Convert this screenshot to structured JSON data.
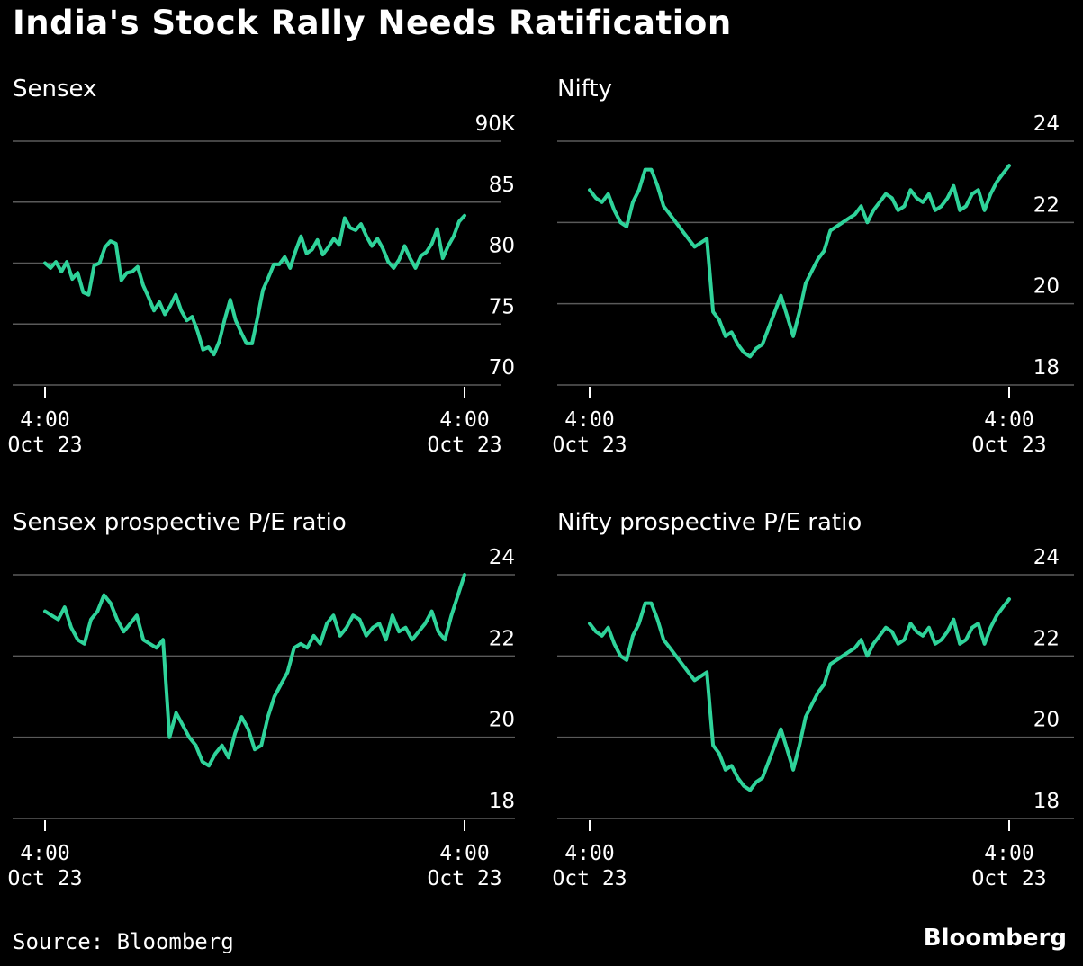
{
  "title": "India's Stock Rally Needs Ratification",
  "source": "Source: Bloomberg",
  "brand": "Bloomberg",
  "colors": {
    "line": "#2fd39a",
    "background": "#000000",
    "grid": "#5a5a5a",
    "text": "#ffffff"
  },
  "chart_data": [
    {
      "type": "line",
      "title": "Sensex",
      "xlabel": "",
      "ylabel": "",
      "ylim": [
        70,
        90
      ],
      "yticks": [
        70,
        75,
        80,
        85,
        90
      ],
      "ytick_labels": [
        "70",
        "75",
        "80",
        "85",
        "90K"
      ],
      "xtick_labels": [
        [
          "4:00",
          "Oct 23"
        ],
        [
          "4:00",
          "Oct 23"
        ]
      ],
      "series": [
        {
          "name": "Sensex",
          "values": [
            80.0,
            79.6,
            80.1,
            79.3,
            80.1,
            78.7,
            79.2,
            77.6,
            77.4,
            79.8,
            80.0,
            81.3,
            81.8,
            81.6,
            78.6,
            79.2,
            79.3,
            79.7,
            78.2,
            77.2,
            76.1,
            76.8,
            75.8,
            76.5,
            77.4,
            76.1,
            75.3,
            75.6,
            74.4,
            72.9,
            73.1,
            72.5,
            73.6,
            75.4,
            77.0,
            75.3,
            74.3,
            73.4,
            73.4,
            75.5,
            77.8,
            78.8,
            79.9,
            79.9,
            80.5,
            79.6,
            81.0,
            82.2,
            80.8,
            81.1,
            81.9,
            80.7,
            81.3,
            82.0,
            81.5,
            83.7,
            82.9,
            82.7,
            83.2,
            82.2,
            81.4,
            82.0,
            81.2,
            80.1,
            79.6,
            80.3,
            81.4,
            80.4,
            79.6,
            80.6,
            80.9,
            81.6,
            82.8,
            80.4,
            81.4,
            82.2,
            83.4,
            83.9
          ]
        }
      ]
    },
    {
      "type": "line",
      "title": "Nifty",
      "xlabel": "",
      "ylabel": "",
      "ylim": [
        18,
        24
      ],
      "yticks": [
        18,
        20,
        22,
        24
      ],
      "ytick_labels": [
        "18",
        "20",
        "22",
        "24"
      ],
      "xtick_labels": [
        [
          "4:00",
          "Oct 23"
        ],
        [
          "4:00",
          "Oct 23"
        ]
      ],
      "series": [
        {
          "name": "Nifty",
          "values": [
            22.8,
            22.6,
            22.5,
            22.7,
            22.3,
            22.0,
            21.9,
            22.5,
            22.8,
            23.3,
            23.3,
            22.9,
            22.4,
            22.2,
            22.0,
            21.8,
            21.6,
            21.4,
            21.5,
            21.6,
            19.8,
            19.6,
            19.2,
            19.3,
            19.0,
            18.8,
            18.7,
            18.9,
            19.0,
            19.4,
            19.8,
            20.2,
            19.7,
            19.2,
            19.8,
            20.5,
            20.8,
            21.1,
            21.3,
            21.8,
            21.9,
            22.0,
            22.1,
            22.2,
            22.4,
            22.0,
            22.3,
            22.5,
            22.7,
            22.6,
            22.3,
            22.4,
            22.8,
            22.6,
            22.5,
            22.7,
            22.3,
            22.4,
            22.6,
            22.9,
            22.3,
            22.4,
            22.7,
            22.8,
            22.3,
            22.7,
            23.0,
            23.2,
            23.4
          ]
        }
      ]
    },
    {
      "type": "line",
      "title": "Sensex prospective P/E ratio",
      "xlabel": "",
      "ylabel": "",
      "ylim": [
        18,
        24
      ],
      "yticks": [
        18,
        20,
        22,
        24
      ],
      "ytick_labels": [
        "18",
        "20",
        "22",
        "24"
      ],
      "xtick_labels": [
        [
          "4:00",
          "Oct 23"
        ],
        [
          "4:00",
          "Oct 23"
        ]
      ],
      "series": [
        {
          "name": "Sensex P/E",
          "values": [
            23.1,
            23.0,
            22.9,
            23.2,
            22.7,
            22.4,
            22.3,
            22.9,
            23.1,
            23.5,
            23.3,
            22.9,
            22.6,
            22.8,
            23.0,
            22.4,
            22.3,
            22.2,
            22.4,
            20.0,
            20.6,
            20.3,
            20.0,
            19.8,
            19.4,
            19.3,
            19.6,
            19.8,
            19.5,
            20.1,
            20.5,
            20.2,
            19.7,
            19.8,
            20.5,
            21.0,
            21.3,
            21.6,
            22.2,
            22.3,
            22.2,
            22.5,
            22.3,
            22.8,
            23.0,
            22.5,
            22.7,
            23.0,
            22.9,
            22.5,
            22.7,
            22.8,
            22.4,
            23.0,
            22.6,
            22.7,
            22.4,
            22.6,
            22.8,
            23.1,
            22.6,
            22.4,
            23.0,
            23.5,
            24.0
          ]
        }
      ]
    },
    {
      "type": "line",
      "title": "Nifty prospective P/E ratio",
      "xlabel": "",
      "ylabel": "",
      "ylim": [
        18,
        24
      ],
      "yticks": [
        18,
        20,
        22,
        24
      ],
      "ytick_labels": [
        "18",
        "20",
        "22",
        "24"
      ],
      "xtick_labels": [
        [
          "4:00",
          "Oct 23"
        ],
        [
          "4:00",
          "Oct 23"
        ]
      ],
      "series": [
        {
          "name": "Nifty P/E",
          "values": [
            22.8,
            22.6,
            22.5,
            22.7,
            22.3,
            22.0,
            21.9,
            22.5,
            22.8,
            23.3,
            23.3,
            22.9,
            22.4,
            22.2,
            22.0,
            21.8,
            21.6,
            21.4,
            21.5,
            21.6,
            19.8,
            19.6,
            19.2,
            19.3,
            19.0,
            18.8,
            18.7,
            18.9,
            19.0,
            19.4,
            19.8,
            20.2,
            19.7,
            19.2,
            19.8,
            20.5,
            20.8,
            21.1,
            21.3,
            21.8,
            21.9,
            22.0,
            22.1,
            22.2,
            22.4,
            22.0,
            22.3,
            22.5,
            22.7,
            22.6,
            22.3,
            22.4,
            22.8,
            22.6,
            22.5,
            22.7,
            22.3,
            22.4,
            22.6,
            22.9,
            22.3,
            22.4,
            22.7,
            22.8,
            22.3,
            22.7,
            23.0,
            23.2,
            23.4
          ]
        }
      ]
    }
  ]
}
